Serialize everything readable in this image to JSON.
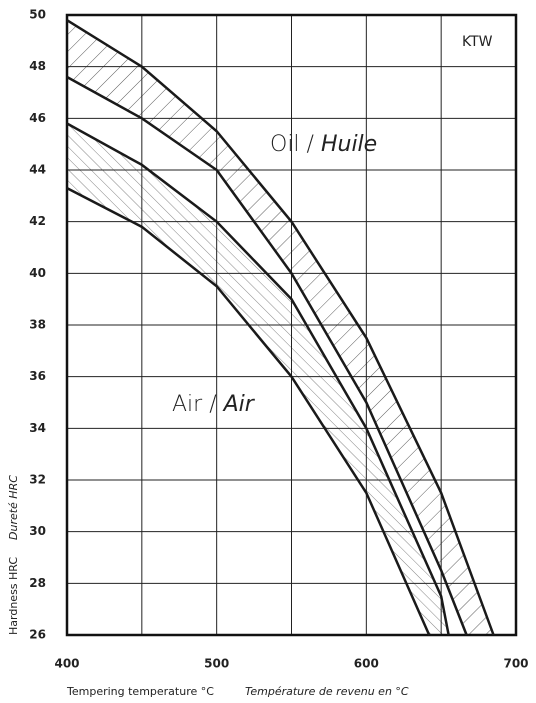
{
  "chart_data": {
    "type": "line",
    "label": "KTW",
    "xlabel": "Tempering temperature °C",
    "xlabel_alt": "Température de revenu en °C",
    "ylabel": "Hardness HRC",
    "ylabel_alt": "Dureté HRC",
    "annotations": [
      {
        "text": "Oil /",
        "italic_text": "Huile",
        "series": [
          0,
          1
        ]
      },
      {
        "text": "Air /",
        "italic_text": "Air",
        "series": [
          2,
          3
        ]
      }
    ],
    "xlim": [
      400,
      700
    ],
    "xticks": [
      400,
      500,
      600,
      700
    ],
    "x_minor_grid": [
      450,
      550,
      650
    ],
    "ylim": [
      26,
      50
    ],
    "yticks": [
      26,
      28,
      30,
      32,
      34,
      36,
      38,
      40,
      42,
      44,
      46,
      48,
      50
    ],
    "grid": true,
    "series": [
      {
        "color": "#1a1a1a",
        "x": [
          400,
          450,
          500,
          550,
          600,
          650,
          685
        ],
        "values": [
          49.8,
          48,
          45.5,
          42,
          37.5,
          31.5,
          26
        ]
      },
      {
        "color": "#1a1a1a",
        "x": [
          400,
          450,
          500,
          550,
          600,
          650,
          667
        ],
        "values": [
          47.6,
          46,
          44,
          40,
          35,
          28.5,
          26
        ]
      },
      {
        "color": "#1a1a1a",
        "x": [
          400,
          450,
          500,
          550,
          600,
          650,
          655
        ],
        "values": [
          45.8,
          44.2,
          42,
          39,
          34,
          27.5,
          26
        ]
      },
      {
        "color": "#1a1a1a",
        "x": [
          400,
          450,
          500,
          550,
          600,
          642
        ],
        "values": [
          43.3,
          41.8,
          39.5,
          36,
          31.5,
          26
        ]
      }
    ]
  }
}
